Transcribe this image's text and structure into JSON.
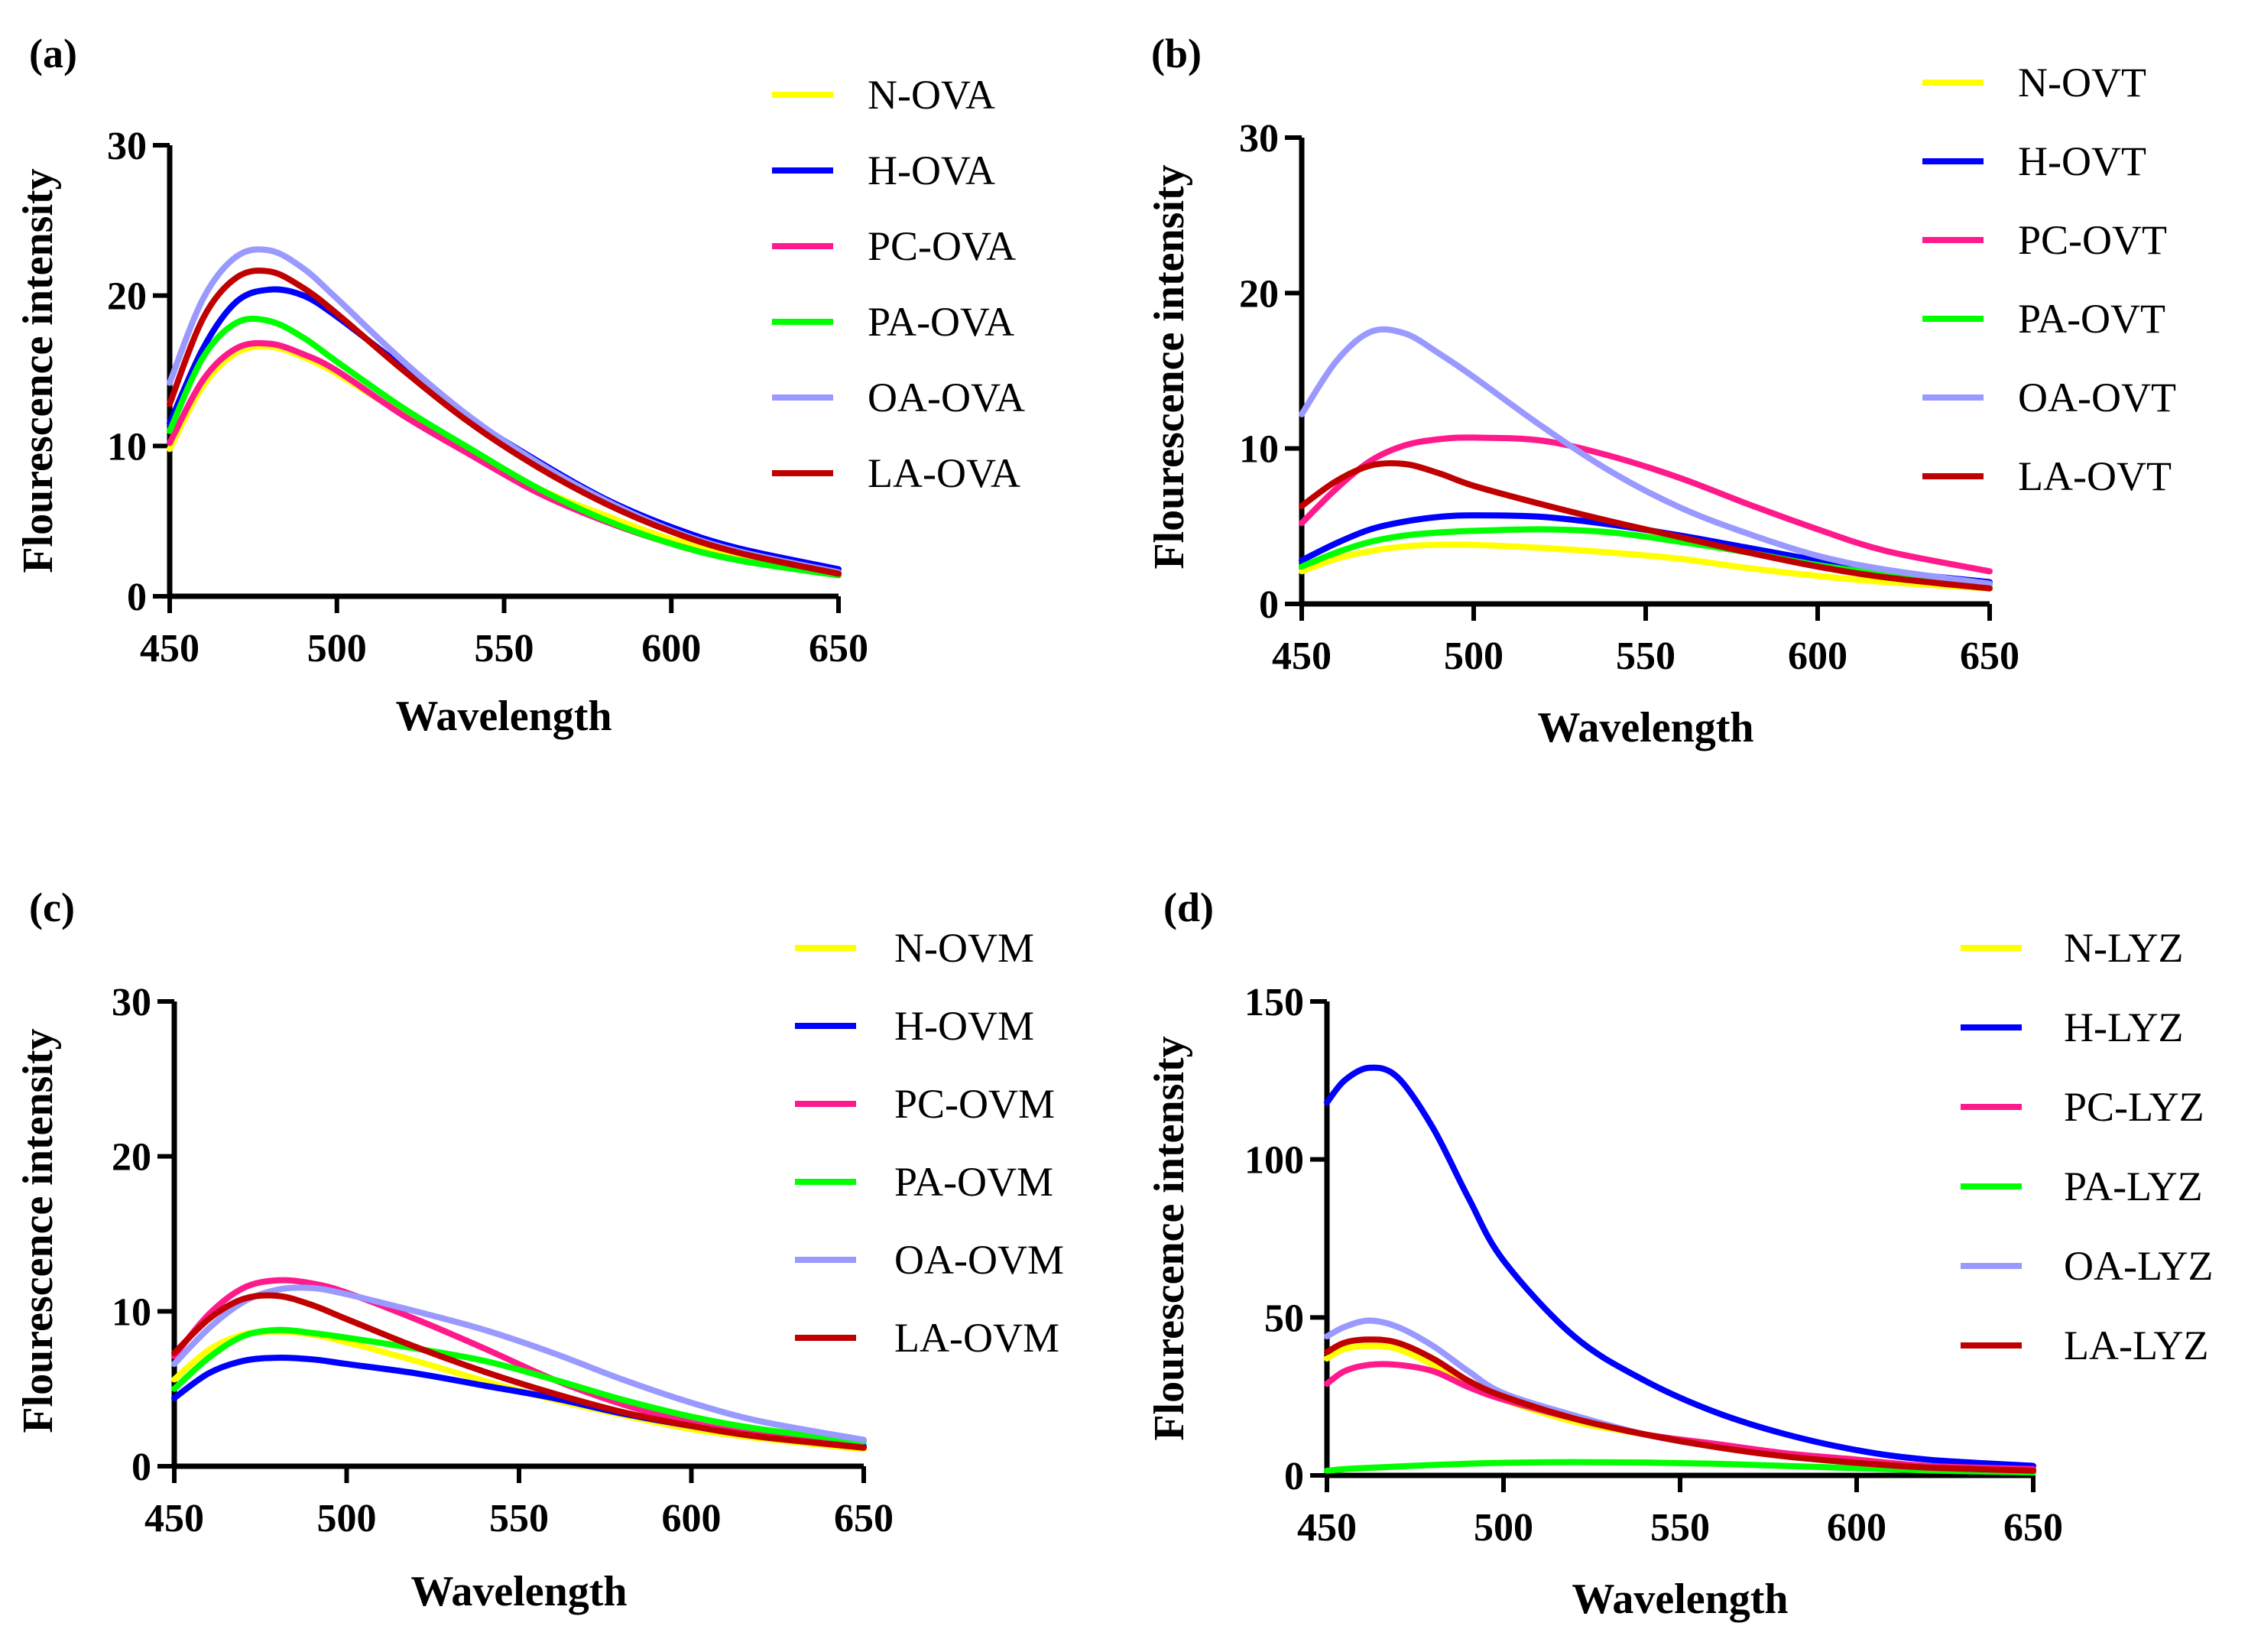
{
  "chart_data": [
    {
      "panel": "(a)",
      "type": "line",
      "xlabel": "Wavelength",
      "ylabel": "Flourescence intensity",
      "xlim": [
        450,
        650
      ],
      "ylim": [
        0,
        30
      ],
      "xticks": [
        "450",
        "500",
        "550",
        "600",
        "650"
      ],
      "yticks": [
        "0",
        "10",
        "20",
        "30"
      ],
      "x": [
        450,
        460,
        470,
        480,
        490,
        500,
        520,
        540,
        560,
        580,
        600,
        620,
        650
      ],
      "series": [
        {
          "name": "N-OVA",
          "color": "#ffff00",
          "values": [
            9.8,
            14.0,
            16.2,
            16.6,
            15.9,
            14.8,
            12.1,
            9.7,
            7.2,
            5.4,
            3.8,
            2.8,
            1.6
          ]
        },
        {
          "name": "H-OVA",
          "color": "#0000ff",
          "values": [
            11.5,
            16.5,
            19.6,
            20.4,
            20.0,
            18.6,
            15.2,
            11.8,
            9.0,
            6.5,
            4.6,
            3.2,
            1.8
          ]
        },
        {
          "name": "PC-OVA",
          "color": "#ff1a8c",
          "values": [
            10.2,
            14.4,
            16.5,
            16.8,
            16.1,
            15.0,
            12.0,
            9.4,
            6.9,
            5.0,
            3.5,
            2.4,
            1.4
          ]
        },
        {
          "name": "PA-OVA",
          "color": "#00ff00",
          "values": [
            11.0,
            15.9,
            18.2,
            18.3,
            17.2,
            15.6,
            12.5,
            9.8,
            7.2,
            5.1,
            3.5,
            2.4,
            1.4
          ]
        },
        {
          "name": "OA-OVA",
          "color": "#9999ff",
          "values": [
            14.2,
            19.8,
            22.6,
            23.0,
            21.8,
            19.8,
            15.6,
            11.9,
            8.9,
            6.4,
            4.4,
            3.0,
            1.6
          ]
        },
        {
          "name": "LA-OVA",
          "color": "#c00000",
          "values": [
            12.8,
            18.5,
            21.2,
            21.6,
            20.5,
            18.8,
            15.0,
            11.5,
            8.6,
            6.2,
            4.3,
            2.9,
            1.5
          ]
        }
      ]
    },
    {
      "panel": "(b)",
      "type": "line",
      "xlabel": "Wavelength",
      "ylabel": "Flourescence intensity",
      "xlim": [
        450,
        650
      ],
      "ylim": [
        0,
        30
      ],
      "xticks": [
        "450",
        "500",
        "550",
        "600",
        "650"
      ],
      "yticks": [
        "0",
        "10",
        "20",
        "30"
      ],
      "x": [
        450,
        460,
        470,
        480,
        490,
        500,
        520,
        540,
        560,
        580,
        600,
        620,
        650
      ],
      "series": [
        {
          "name": "N-OVT",
          "color": "#ffff00",
          "values": [
            2.1,
            2.9,
            3.4,
            3.7,
            3.8,
            3.8,
            3.6,
            3.3,
            2.9,
            2.3,
            1.8,
            1.4,
            1.0
          ]
        },
        {
          "name": "H-OVT",
          "color": "#0000ff",
          "values": [
            2.8,
            3.9,
            4.8,
            5.3,
            5.6,
            5.7,
            5.6,
            5.1,
            4.4,
            3.6,
            2.8,
            2.1,
            1.4
          ]
        },
        {
          "name": "PC-OVT",
          "color": "#ff1a8c",
          "values": [
            5.2,
            7.4,
            9.2,
            10.2,
            10.6,
            10.7,
            10.5,
            9.5,
            8.1,
            6.4,
            4.8,
            3.4,
            2.1
          ]
        },
        {
          "name": "PA-OVT",
          "color": "#00ff00",
          "values": [
            2.4,
            3.3,
            4.0,
            4.4,
            4.6,
            4.7,
            4.8,
            4.6,
            4.0,
            3.3,
            2.5,
            1.9,
            1.2
          ]
        },
        {
          "name": "OA-OVT",
          "color": "#9999ff",
          "values": [
            12.2,
            15.6,
            17.5,
            17.4,
            16.1,
            14.6,
            11.4,
            8.5,
            6.2,
            4.5,
            3.1,
            2.2,
            1.3
          ]
        },
        {
          "name": "LA-OVT",
          "color": "#c00000",
          "values": [
            6.3,
            7.9,
            8.9,
            9.0,
            8.4,
            7.6,
            6.4,
            5.3,
            4.3,
            3.3,
            2.4,
            1.7,
            1.0
          ]
        }
      ]
    },
    {
      "panel": "(c)",
      "type": "line",
      "xlabel": "Wavelength",
      "ylabel": "Flourescence intensity",
      "xlim": [
        450,
        650
      ],
      "ylim": [
        0,
        30
      ],
      "xticks": [
        "450",
        "500",
        "550",
        "600",
        "650"
      ],
      "yticks": [
        "0",
        "10",
        "20",
        "30"
      ],
      "x": [
        450,
        460,
        470,
        480,
        490,
        500,
        520,
        540,
        560,
        580,
        600,
        620,
        650
      ],
      "series": [
        {
          "name": "N-OVM",
          "color": "#ffff00",
          "values": [
            5.6,
            7.5,
            8.5,
            8.7,
            8.5,
            8.0,
            6.8,
            5.5,
            4.3,
            3.3,
            2.4,
            1.8,
            1.1
          ]
        },
        {
          "name": "H-OVM",
          "color": "#0000ff",
          "values": [
            4.4,
            6.0,
            6.8,
            7.0,
            6.9,
            6.6,
            6.0,
            5.2,
            4.4,
            3.4,
            2.6,
            2.0,
            1.3
          ]
        },
        {
          "name": "PC-OVM",
          "color": "#ff1a8c",
          "values": [
            7.1,
            9.8,
            11.5,
            12.0,
            11.8,
            11.2,
            9.5,
            7.6,
            5.6,
            4.0,
            2.8,
            2.0,
            1.2
          ]
        },
        {
          "name": "PA-OVM",
          "color": "#00ff00",
          "values": [
            5.0,
            7.0,
            8.4,
            8.8,
            8.6,
            8.3,
            7.6,
            6.8,
            5.6,
            4.3,
            3.2,
            2.4,
            1.6
          ]
        },
        {
          "name": "OA-OVM",
          "color": "#9999ff",
          "values": [
            6.6,
            8.9,
            10.6,
            11.4,
            11.5,
            11.1,
            10.0,
            8.8,
            7.3,
            5.6,
            4.1,
            2.9,
            1.7
          ]
        },
        {
          "name": "LA-OVM",
          "color": "#c00000",
          "values": [
            7.3,
            9.5,
            10.8,
            11.0,
            10.4,
            9.5,
            7.7,
            6.1,
            4.7,
            3.5,
            2.6,
            1.9,
            1.2
          ]
        }
      ]
    },
    {
      "panel": "(d)",
      "type": "line",
      "xlabel": "Wavelength",
      "ylabel": "Flourescence intensity",
      "xlim": [
        450,
        650
      ],
      "ylim": [
        0,
        150
      ],
      "xticks": [
        "450",
        "500",
        "550",
        "600",
        "650"
      ],
      "yticks": [
        "0",
        "50",
        "100",
        "150"
      ],
      "x": [
        450,
        455,
        462,
        470,
        480,
        490,
        500,
        520,
        540,
        560,
        580,
        600,
        620,
        650
      ],
      "series": [
        {
          "name": "N-LYZ",
          "color": "#ffff00",
          "values": [
            37,
            40,
            41,
            40,
            35,
            29,
            24,
            17,
            13,
            9,
            6,
            4,
            2.5,
            1.5
          ]
        },
        {
          "name": "H-LYZ",
          "color": "#0000ff",
          "values": [
            118,
            125,
            129,
            126,
            110,
            88,
            68,
            44,
            30,
            20,
            13,
            8,
            5,
            3
          ]
        },
        {
          "name": "PC-LYZ",
          "color": "#ff1a8c",
          "values": [
            29,
            33,
            35,
            35,
            33,
            28,
            24,
            18,
            13,
            10,
            7,
            5,
            3,
            2
          ]
        },
        {
          "name": "PA-LYZ",
          "color": "#00ff00",
          "values": [
            1.5,
            2.0,
            2.4,
            2.8,
            3.3,
            3.7,
            4.0,
            4.2,
            4.1,
            3.7,
            3.0,
            2.3,
            1.6,
            0.9
          ]
        },
        {
          "name": "OA-LYZ",
          "color": "#9999ff",
          "values": [
            44,
            47,
            49,
            47,
            41,
            33,
            26,
            19,
            13,
            9,
            6,
            4,
            2.5,
            1.5
          ]
        },
        {
          "name": "LA-LYZ",
          "color": "#c00000",
          "values": [
            39,
            42,
            43,
            42,
            37,
            30,
            25,
            18,
            13,
            9,
            6,
            4,
            2.5,
            1.5
          ]
        }
      ]
    }
  ]
}
